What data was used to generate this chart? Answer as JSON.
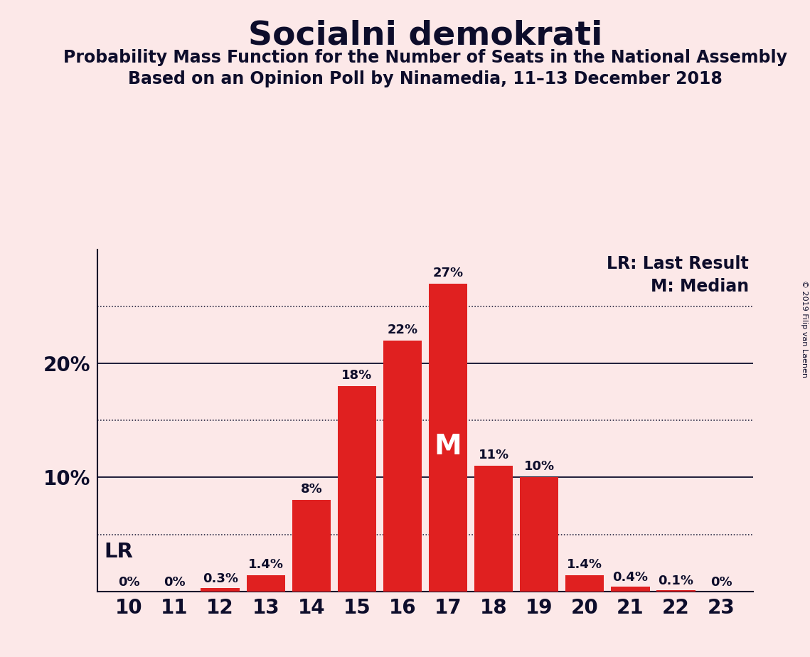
{
  "title": "Socialni demokrati",
  "subtitle1": "Probability Mass Function for the Number of Seats in the National Assembly",
  "subtitle2": "Based on an Opinion Poll by Ninamedia, 11–13 December 2018",
  "copyright": "© 2019 Filip van Laenen",
  "seats": [
    10,
    11,
    12,
    13,
    14,
    15,
    16,
    17,
    18,
    19,
    20,
    21,
    22,
    23
  ],
  "probabilities": [
    0.0,
    0.0,
    0.3,
    1.4,
    8.0,
    18.0,
    22.0,
    27.0,
    11.0,
    10.0,
    1.4,
    0.4,
    0.1,
    0.0
  ],
  "bar_color": "#e02020",
  "background_color": "#fce8e8",
  "text_color": "#0d0d2b",
  "median_seat": 17,
  "lr_seat": 10,
  "legend_lr": "LR: Last Result",
  "legend_m": "M: Median",
  "solid_gridlines": [
    10.0,
    20.0
  ],
  "dotted_gridlines": [
    5.0,
    15.0,
    25.0
  ],
  "ylim": [
    0,
    30
  ],
  "bar_labels": [
    "0%",
    "0%",
    "0.3%",
    "1.4%",
    "8%",
    "18%",
    "22%",
    "27%",
    "11%",
    "10%",
    "1.4%",
    "0.4%",
    "0.1%",
    "0%"
  ],
  "title_fontsize": 34,
  "subtitle_fontsize": 17,
  "tick_fontsize": 20,
  "label_fontsize": 13,
  "legend_fontsize": 17
}
